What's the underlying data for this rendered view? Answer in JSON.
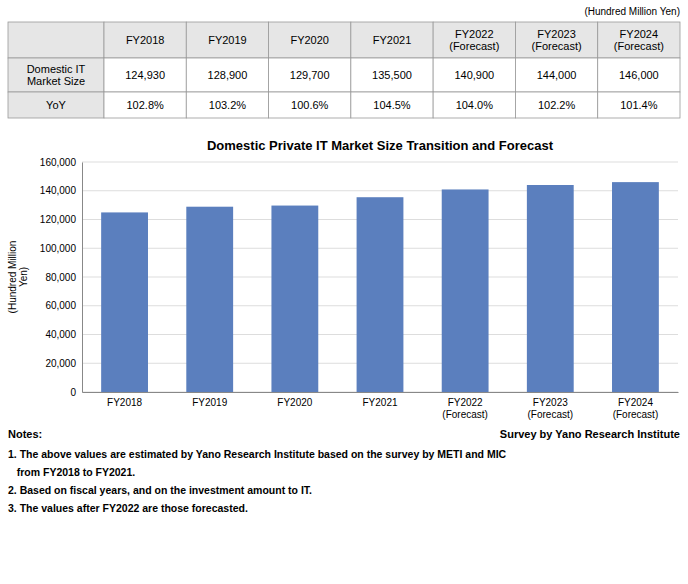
{
  "chart_data": {
    "type": "bar",
    "title": "Domestic Private IT Market Size Transition and Forecast",
    "ylabel": "(Hundred Million\nYen)",
    "categories": [
      "FY2018",
      "FY2019",
      "FY2020",
      "FY2021",
      "FY2022\n(Forecast)",
      "FY2023\n(Forecast)",
      "FY2024\n(Forecast)"
    ],
    "values": [
      124930,
      128900,
      129700,
      135500,
      140900,
      144000,
      146000
    ],
    "color": "#5b7fbe",
    "ylim": [
      0,
      160000
    ],
    "yticks": [
      0,
      {
        "value": 20000,
        "label": "20,000"
      },
      {
        "value": 40000,
        "label": "40,000"
      },
      {
        "value": 60000,
        "label": "60,000"
      },
      {
        "value": 80000,
        "label": "80,000"
      },
      {
        "value": 100000,
        "label": "100,000"
      },
      {
        "value": 120000,
        "label": "120,000"
      },
      {
        "value": 140000,
        "label": "140,000"
      },
      {
        "value": 160000,
        "label": "160,000"
      }
    ],
    "grid": true,
    "table": {
      "unit_label": "(Hundred Million Yen)",
      "rows": [
        {
          "name": "Domestic IT\nMarket Size",
          "values": [
            124930,
            128900,
            129700,
            135500,
            140900,
            144000,
            146000
          ],
          "value_labels": [
            "124,930",
            "128,900",
            "129,700",
            "135,500",
            "140,900",
            "144,000",
            "146,000"
          ]
        },
        {
          "name": "YoY",
          "values": [
            102.8,
            103.2,
            100.6,
            104.5,
            104.0,
            102.2,
            101.4
          ],
          "value_labels": [
            "102.8%",
            "103.2%",
            "100.6%",
            "104.5%",
            "104.0%",
            "102.2%",
            "101.4%"
          ]
        }
      ]
    },
    "notes_title": "Notes:",
    "source": "Survey by Yano Research Institute",
    "notes": [
      "1. The above values are estimated by Yano Research Institute based on the survey by METI and MIC",
      "   from FY2018 to FY2021.",
      "2. Based on fiscal years, and on the investment amount to IT.",
      "3. The values after FY2022 are those forecasted."
    ]
  }
}
